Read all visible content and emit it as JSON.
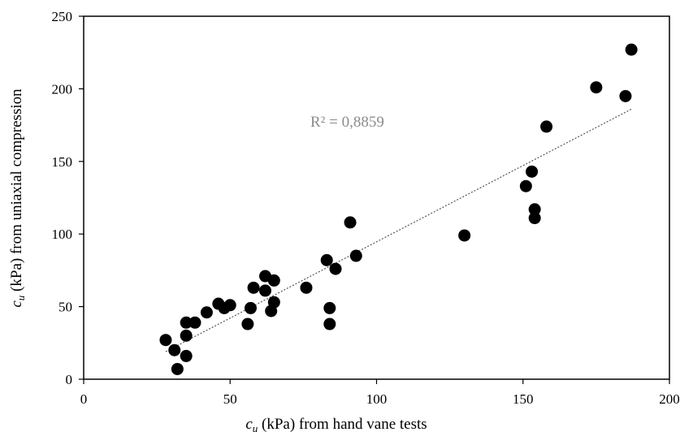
{
  "chart_data": {
    "type": "scatter",
    "title": "",
    "xlabel": {
      "var": "c",
      "sub": "u",
      "rest": " (kPa) from hand vane tests"
    },
    "ylabel": {
      "var": "c",
      "sub": "u",
      "rest": " (kPa) from uniaxial compression"
    },
    "xlim": [
      0,
      200
    ],
    "ylim": [
      0,
      250
    ],
    "x_ticks": [
      "0",
      "50",
      "100",
      "150",
      "200"
    ],
    "y_ticks": [
      "0",
      "50",
      "100",
      "150",
      "200",
      "250"
    ],
    "grid": false,
    "legend": "none",
    "annotation": "R² = 0,8859",
    "marker_color": "#000000",
    "trendline": {
      "style": "dotted",
      "color": "#555555",
      "from": [
        28,
        19
      ],
      "to": [
        187,
        186
      ]
    },
    "points": [
      {
        "x": 28,
        "y": 27
      },
      {
        "x": 31,
        "y": 20
      },
      {
        "x": 32,
        "y": 7
      },
      {
        "x": 35,
        "y": 16
      },
      {
        "x": 35,
        "y": 30
      },
      {
        "x": 35,
        "y": 39
      },
      {
        "x": 38,
        "y": 39
      },
      {
        "x": 42,
        "y": 46
      },
      {
        "x": 46,
        "y": 52
      },
      {
        "x": 48,
        "y": 49
      },
      {
        "x": 50,
        "y": 51
      },
      {
        "x": 56,
        "y": 38
      },
      {
        "x": 57,
        "y": 49
      },
      {
        "x": 58,
        "y": 63
      },
      {
        "x": 62,
        "y": 61
      },
      {
        "x": 62,
        "y": 71
      },
      {
        "x": 64,
        "y": 47
      },
      {
        "x": 65,
        "y": 53
      },
      {
        "x": 65,
        "y": 68
      },
      {
        "x": 76,
        "y": 63
      },
      {
        "x": 83,
        "y": 82
      },
      {
        "x": 84,
        "y": 49
      },
      {
        "x": 84,
        "y": 38
      },
      {
        "x": 86,
        "y": 76
      },
      {
        "x": 91,
        "y": 108
      },
      {
        "x": 93,
        "y": 85
      },
      {
        "x": 130,
        "y": 99
      },
      {
        "x": 151,
        "y": 133
      },
      {
        "x": 153,
        "y": 143
      },
      {
        "x": 154,
        "y": 117
      },
      {
        "x": 154,
        "y": 111
      },
      {
        "x": 158,
        "y": 174
      },
      {
        "x": 175,
        "y": 201
      },
      {
        "x": 185,
        "y": 195
      },
      {
        "x": 187,
        "y": 227
      }
    ]
  }
}
